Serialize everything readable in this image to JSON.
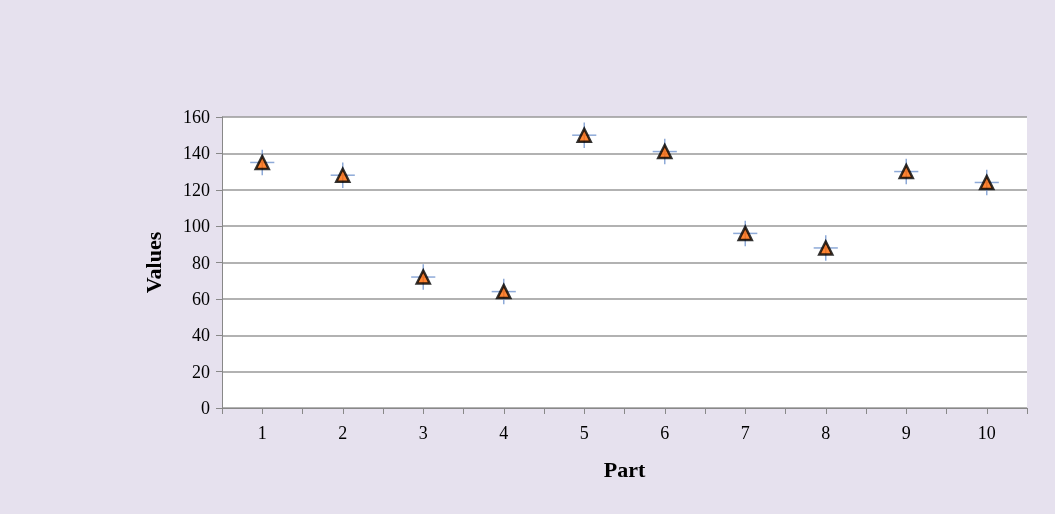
{
  "chart_data": {
    "type": "scatter",
    "xlabel": "Part",
    "ylabel": "Values",
    "x": [
      1,
      2,
      3,
      4,
      5,
      6,
      7,
      8,
      9,
      10
    ],
    "series": [
      {
        "color": "#ff6600",
        "values": [
          135,
          128,
          72,
          64,
          150,
          141,
          96,
          88,
          130,
          124
        ],
        "errors": [
          7,
          7,
          7,
          7,
          7,
          7,
          7,
          7,
          7,
          7
        ],
        "xerrors": [
          0.15,
          0.15,
          0.15,
          0.15,
          0.15,
          0.15,
          0.15,
          0.15,
          0.15,
          0.15
        ]
      }
    ],
    "xlim": [
      0.5,
      10.5
    ],
    "xticks": [
      {
        "value": 0.5,
        "label": null
      },
      1,
      {
        "value": 1.5,
        "label": null
      },
      2,
      {
        "value": 2.5,
        "label": null
      },
      3,
      {
        "value": 3.5,
        "label": null
      },
      4,
      {
        "value": 4.5,
        "label": null
      },
      5,
      {
        "value": 5.5,
        "label": null
      },
      6,
      {
        "value": 6.5,
        "label": null
      },
      7,
      {
        "value": 7.5,
        "label": null
      },
      8,
      {
        "value": 8.5,
        "label": null
      },
      9,
      {
        "value": 9.5,
        "label": null
      },
      10,
      {
        "value": 10.5,
        "label": null
      }
    ],
    "ylim": [
      0,
      160
    ],
    "yticks": [
      0,
      20,
      40,
      60,
      80,
      100,
      120,
      140,
      160
    ],
    "grid": "y",
    "marker": "triangle"
  }
}
